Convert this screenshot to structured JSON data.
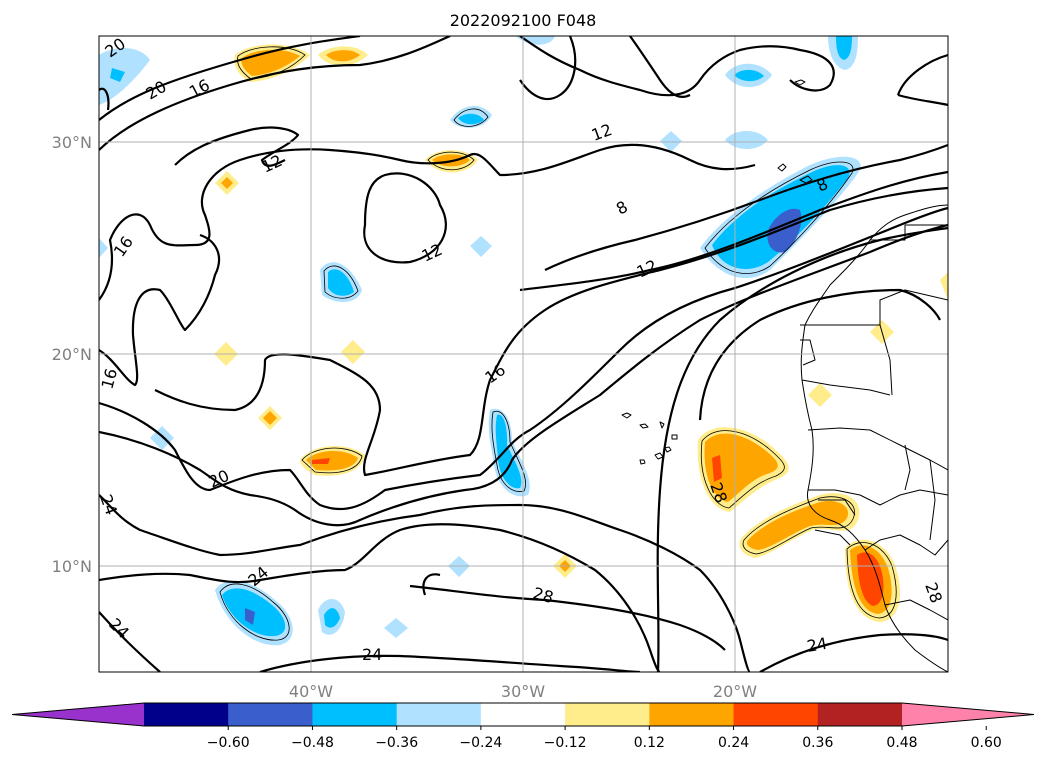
{
  "title": "2022092100 F048",
  "map": {
    "projection": "lat-lon",
    "lon_range": [
      -50,
      -10
    ],
    "lat_range": [
      5,
      35
    ],
    "grid": true,
    "lat_ticks": [
      {
        "value": 30,
        "label": "30°N"
      },
      {
        "value": 20,
        "label": "20°N"
      },
      {
        "value": 10,
        "label": "10°N"
      }
    ],
    "lon_ticks": [
      {
        "value": -40,
        "label": "40°W"
      },
      {
        "value": -30,
        "label": "30°W"
      },
      {
        "value": -20,
        "label": "20°W"
      }
    ],
    "contour_labels": [
      "20",
      "20",
      "16",
      "12",
      "16",
      "12",
      "12",
      "8",
      "8",
      "12",
      "16",
      "16",
      "20",
      "24",
      "24",
      "24",
      "28",
      "24",
      "28",
      "28",
      "24"
    ]
  },
  "colorbar": {
    "extend": "both",
    "tick_labels": [
      "−0.60",
      "−0.48",
      "−0.36",
      "−0.24",
      "−0.12",
      "0.12",
      "0.24",
      "0.36",
      "0.48",
      "0.60"
    ],
    "colors": [
      "#9932cc",
      "#00008b",
      "#3a5fcd",
      "#00bfff",
      "#b0e2ff",
      "#ffffff",
      "#ffec8b",
      "#ffa500",
      "#ff4500",
      "#b22222",
      "#ff82ab"
    ]
  }
}
